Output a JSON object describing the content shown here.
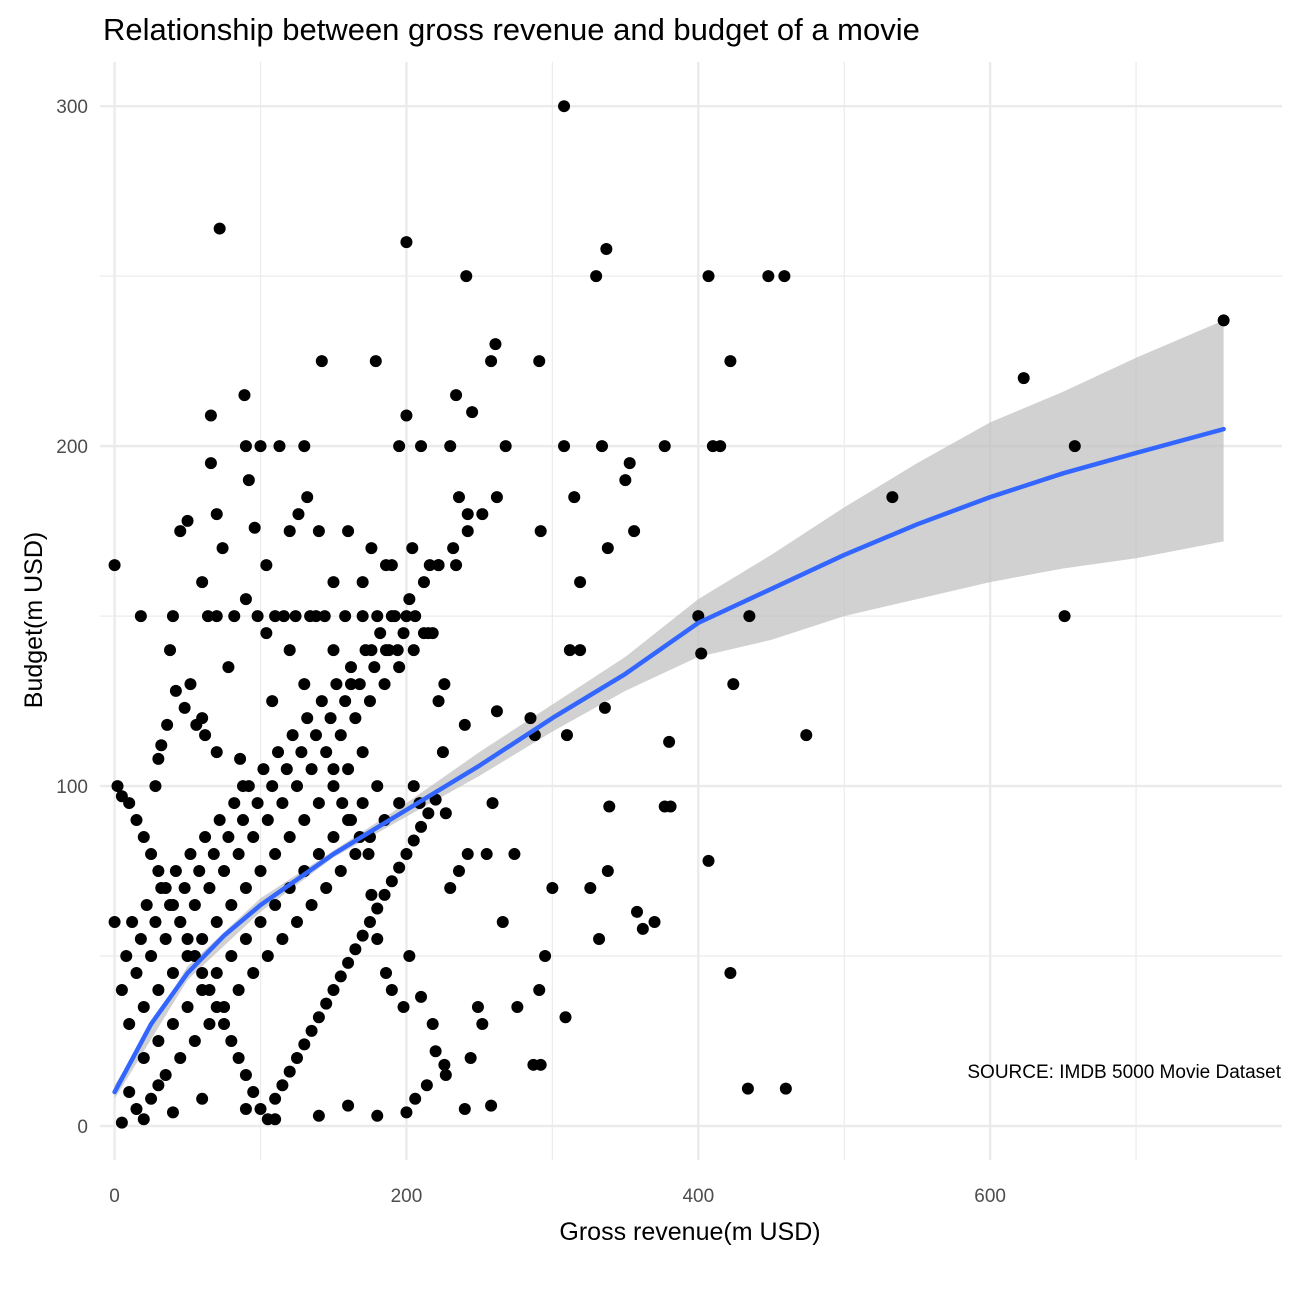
{
  "chart_data": {
    "type": "scatter",
    "title": "Relationship between gross revenue and budget of a movie",
    "xlabel": "Gross revenue(m USD)",
    "ylabel": "Budget(m USD)",
    "caption": "SOURCE: IMDB 5000 Movie Dataset",
    "xlim": [
      -10,
      800
    ],
    "ylim": [
      -10,
      313
    ],
    "x_ticks": [
      0,
      200,
      400,
      600
    ],
    "y_ticks": [
      0,
      100,
      200,
      300
    ],
    "grid": true,
    "colors": {
      "points": "#000000",
      "trend": "#3366FF",
      "band": "#BEBEBE",
      "grid": "#EBEBEB"
    },
    "points": [
      [
        308,
        300
      ],
      [
        72,
        264
      ],
      [
        200,
        260
      ],
      [
        337,
        258
      ],
      [
        241,
        250
      ],
      [
        330,
        250
      ],
      [
        407,
        250
      ],
      [
        448,
        250
      ],
      [
        459,
        250
      ],
      [
        760,
        237
      ],
      [
        261,
        230
      ],
      [
        142,
        225
      ],
      [
        179,
        225
      ],
      [
        258,
        225
      ],
      [
        291,
        225
      ],
      [
        422,
        225
      ],
      [
        623,
        220
      ],
      [
        234,
        215
      ],
      [
        89,
        215
      ],
      [
        245,
        210
      ],
      [
        66,
        209
      ],
      [
        200,
        209
      ],
      [
        658,
        200
      ],
      [
        533,
        185
      ],
      [
        400,
        150
      ],
      [
        435,
        150
      ],
      [
        651,
        150
      ],
      [
        402,
        139
      ],
      [
        424,
        130
      ],
      [
        474,
        115
      ],
      [
        380,
        113
      ],
      [
        326,
        70
      ],
      [
        407,
        78
      ],
      [
        338,
        75
      ],
      [
        422,
        45
      ],
      [
        434,
        11
      ],
      [
        460,
        11
      ],
      [
        0,
        165
      ],
      [
        292,
        175
      ],
      [
        308,
        200
      ],
      [
        334,
        200
      ],
      [
        377,
        200
      ],
      [
        410,
        200
      ],
      [
        415,
        200
      ],
      [
        268,
        200
      ],
      [
        230,
        200
      ],
      [
        210,
        200
      ],
      [
        195,
        200
      ],
      [
        113,
        200
      ],
      [
        130,
        200
      ],
      [
        100,
        200
      ],
      [
        90,
        200
      ],
      [
        315,
        185
      ],
      [
        350,
        190
      ],
      [
        353,
        195
      ],
      [
        356,
        175
      ],
      [
        319,
        160
      ],
      [
        338,
        170
      ],
      [
        312,
        140
      ],
      [
        319,
        140
      ],
      [
        336,
        123
      ],
      [
        339,
        94
      ],
      [
        377,
        94
      ],
      [
        381,
        94
      ],
      [
        370,
        60
      ],
      [
        358,
        63
      ],
      [
        362,
        58
      ],
      [
        332,
        55
      ],
      [
        300,
        70
      ],
      [
        295,
        50
      ],
      [
        291,
        40
      ],
      [
        287,
        18
      ],
      [
        292,
        18
      ],
      [
        309,
        32
      ],
      [
        276,
        35
      ],
      [
        266,
        60
      ],
      [
        249,
        35
      ],
      [
        252,
        30
      ],
      [
        244,
        20
      ],
      [
        240,
        5
      ],
      [
        227,
        15
      ],
      [
        230,
        70
      ],
      [
        242,
        80
      ],
      [
        255,
        80
      ],
      [
        274,
        80
      ],
      [
        259,
        95
      ],
      [
        225,
        110
      ],
      [
        240,
        118
      ],
      [
        262,
        122
      ],
      [
        285,
        120
      ],
      [
        288,
        115
      ],
      [
        310,
        115
      ],
      [
        258,
        6
      ],
      [
        236,
        75
      ],
      [
        227,
        92
      ],
      [
        209,
        95
      ],
      [
        200,
        4
      ],
      [
        180,
        3
      ],
      [
        160,
        6
      ],
      [
        140,
        3
      ],
      [
        110,
        2
      ],
      [
        90,
        5
      ],
      [
        60,
        8
      ],
      [
        40,
        4
      ],
      [
        20,
        2
      ],
      [
        5,
        1
      ],
      [
        10,
        10
      ],
      [
        15,
        5
      ],
      [
        25,
        8
      ],
      [
        30,
        12
      ],
      [
        35,
        15
      ],
      [
        45,
        20
      ],
      [
        55,
        25
      ],
      [
        65,
        30
      ],
      [
        75,
        35
      ],
      [
        85,
        40
      ],
      [
        95,
        45
      ],
      [
        105,
        50
      ],
      [
        115,
        55
      ],
      [
        125,
        60
      ],
      [
        135,
        65
      ],
      [
        145,
        70
      ],
      [
        155,
        75
      ],
      [
        165,
        80
      ],
      [
        175,
        85
      ],
      [
        185,
        90
      ],
      [
        195,
        95
      ],
      [
        205,
        100
      ],
      [
        20,
        20
      ],
      [
        30,
        25
      ],
      [
        40,
        30
      ],
      [
        50,
        35
      ],
      [
        60,
        40
      ],
      [
        70,
        45
      ],
      [
        80,
        50
      ],
      [
        90,
        55
      ],
      [
        100,
        60
      ],
      [
        110,
        65
      ],
      [
        120,
        70
      ],
      [
        130,
        75
      ],
      [
        140,
        80
      ],
      [
        150,
        85
      ],
      [
        160,
        90
      ],
      [
        170,
        95
      ],
      [
        180,
        100
      ],
      [
        10,
        30
      ],
      [
        20,
        35
      ],
      [
        30,
        40
      ],
      [
        40,
        45
      ],
      [
        50,
        50
      ],
      [
        60,
        55
      ],
      [
        70,
        60
      ],
      [
        80,
        65
      ],
      [
        90,
        70
      ],
      [
        100,
        75
      ],
      [
        110,
        80
      ],
      [
        120,
        85
      ],
      [
        130,
        90
      ],
      [
        140,
        95
      ],
      [
        150,
        100
      ],
      [
        160,
        105
      ],
      [
        170,
        110
      ],
      [
        5,
        40
      ],
      [
        15,
        45
      ],
      [
        25,
        50
      ],
      [
        35,
        55
      ],
      [
        45,
        60
      ],
      [
        55,
        65
      ],
      [
        65,
        70
      ],
      [
        75,
        75
      ],
      [
        85,
        80
      ],
      [
        95,
        85
      ],
      [
        105,
        90
      ],
      [
        115,
        95
      ],
      [
        125,
        100
      ],
      [
        135,
        105
      ],
      [
        145,
        110
      ],
      [
        155,
        115
      ],
      [
        165,
        120
      ],
      [
        175,
        125
      ],
      [
        185,
        130
      ],
      [
        195,
        135
      ],
      [
        205,
        140
      ],
      [
        215,
        145
      ],
      [
        8,
        50
      ],
      [
        18,
        55
      ],
      [
        28,
        60
      ],
      [
        38,
        65
      ],
      [
        48,
        70
      ],
      [
        58,
        75
      ],
      [
        68,
        80
      ],
      [
        78,
        85
      ],
      [
        88,
        90
      ],
      [
        98,
        95
      ],
      [
        108,
        100
      ],
      [
        118,
        105
      ],
      [
        128,
        110
      ],
      [
        138,
        115
      ],
      [
        148,
        120
      ],
      [
        158,
        125
      ],
      [
        168,
        130
      ],
      [
        178,
        135
      ],
      [
        188,
        140
      ],
      [
        198,
        145
      ],
      [
        12,
        60
      ],
      [
        22,
        65
      ],
      [
        32,
        70
      ],
      [
        42,
        75
      ],
      [
        52,
        80
      ],
      [
        62,
        85
      ],
      [
        72,
        90
      ],
      [
        82,
        95
      ],
      [
        92,
        100
      ],
      [
        102,
        105
      ],
      [
        112,
        110
      ],
      [
        122,
        115
      ],
      [
        132,
        120
      ],
      [
        142,
        125
      ],
      [
        152,
        130
      ],
      [
        162,
        135
      ],
      [
        172,
        140
      ],
      [
        182,
        145
      ],
      [
        192,
        150
      ],
      [
        202,
        155
      ],
      [
        212,
        160
      ],
      [
        222,
        165
      ],
      [
        232,
        170
      ],
      [
        242,
        175
      ],
      [
        252,
        180
      ],
      [
        262,
        185
      ],
      [
        0,
        60
      ],
      [
        2,
        100
      ],
      [
        5,
        97
      ],
      [
        10,
        95
      ],
      [
        15,
        90
      ],
      [
        20,
        85
      ],
      [
        25,
        80
      ],
      [
        30,
        75
      ],
      [
        35,
        70
      ],
      [
        40,
        65
      ],
      [
        45,
        60
      ],
      [
        50,
        55
      ],
      [
        55,
        50
      ],
      [
        60,
        45
      ],
      [
        65,
        40
      ],
      [
        70,
        35
      ],
      [
        75,
        30
      ],
      [
        80,
        25
      ],
      [
        85,
        20
      ],
      [
        90,
        15
      ],
      [
        95,
        10
      ],
      [
        100,
        5
      ],
      [
        105,
        2
      ],
      [
        110,
        8
      ],
      [
        115,
        12
      ],
      [
        120,
        16
      ],
      [
        125,
        20
      ],
      [
        130,
        24
      ],
      [
        135,
        28
      ],
      [
        140,
        32
      ],
      [
        145,
        36
      ],
      [
        150,
        40
      ],
      [
        155,
        44
      ],
      [
        160,
        48
      ],
      [
        165,
        52
      ],
      [
        170,
        56
      ],
      [
        175,
        60
      ],
      [
        180,
        64
      ],
      [
        185,
        68
      ],
      [
        190,
        72
      ],
      [
        195,
        76
      ],
      [
        200,
        80
      ],
      [
        205,
        84
      ],
      [
        210,
        88
      ],
      [
        215,
        92
      ],
      [
        220,
        96
      ],
      [
        18,
        150
      ],
      [
        38,
        140
      ],
      [
        40,
        150
      ],
      [
        52,
        130
      ],
      [
        60,
        120
      ],
      [
        64,
        150
      ],
      [
        70,
        150
      ],
      [
        78,
        135
      ],
      [
        82,
        150
      ],
      [
        90,
        155
      ],
      [
        98,
        150
      ],
      [
        104,
        145
      ],
      [
        108,
        125
      ],
      [
        116,
        150
      ],
      [
        120,
        140
      ],
      [
        124,
        150
      ],
      [
        130,
        130
      ],
      [
        134,
        150
      ],
      [
        138,
        150
      ],
      [
        144,
        150
      ],
      [
        150,
        140
      ],
      [
        158,
        150
      ],
      [
        162,
        130
      ],
      [
        170,
        150
      ],
      [
        176,
        140
      ],
      [
        180,
        150
      ],
      [
        186,
        140
      ],
      [
        190,
        150
      ],
      [
        194,
        140
      ],
      [
        200,
        150
      ],
      [
        206,
        150
      ],
      [
        212,
        145
      ],
      [
        218,
        145
      ],
      [
        222,
        125
      ],
      [
        226,
        130
      ],
      [
        88,
        100
      ],
      [
        86,
        108
      ],
      [
        70,
        110
      ],
      [
        62,
        115
      ],
      [
        56,
        118
      ],
      [
        48,
        123
      ],
      [
        42,
        128
      ],
      [
        36,
        118
      ],
      [
        32,
        112
      ],
      [
        30,
        108
      ],
      [
        28,
        100
      ],
      [
        45,
        175
      ],
      [
        50,
        178
      ],
      [
        60,
        160
      ],
      [
        66,
        195
      ],
      [
        70,
        180
      ],
      [
        74,
        170
      ],
      [
        92,
        190
      ],
      [
        96,
        176
      ],
      [
        104,
        165
      ],
      [
        110,
        150
      ],
      [
        120,
        175
      ],
      [
        126,
        180
      ],
      [
        132,
        185
      ],
      [
        140,
        175
      ],
      [
        150,
        160
      ],
      [
        160,
        175
      ],
      [
        170,
        160
      ],
      [
        176,
        170
      ],
      [
        186,
        165
      ],
      [
        190,
        165
      ],
      [
        204,
        170
      ],
      [
        216,
        165
      ],
      [
        222,
        165
      ],
      [
        236,
        185
      ],
      [
        242,
        180
      ],
      [
        234,
        165
      ],
      [
        150,
        105
      ],
      [
        156,
        95
      ],
      [
        162,
        90
      ],
      [
        168,
        85
      ],
      [
        174,
        80
      ],
      [
        176,
        68
      ],
      [
        180,
        55
      ],
      [
        186,
        45
      ],
      [
        190,
        40
      ],
      [
        198,
        35
      ],
      [
        202,
        50
      ],
      [
        210,
        38
      ],
      [
        218,
        30
      ],
      [
        220,
        22
      ],
      [
        226,
        18
      ],
      [
        214,
        12
      ],
      [
        206,
        8
      ]
    ],
    "trend": [
      [
        0,
        10
      ],
      [
        25,
        30
      ],
      [
        50,
        45
      ],
      [
        75,
        56
      ],
      [
        100,
        65
      ],
      [
        150,
        80
      ],
      [
        200,
        93
      ],
      [
        250,
        106
      ],
      [
        300,
        120
      ],
      [
        350,
        133
      ],
      [
        400,
        148
      ],
      [
        450,
        158
      ],
      [
        500,
        168
      ],
      [
        550,
        177
      ],
      [
        600,
        185
      ],
      [
        650,
        192
      ],
      [
        700,
        198
      ],
      [
        760,
        205
      ]
    ],
    "band_upper": [
      [
        0,
        12
      ],
      [
        50,
        47
      ],
      [
        100,
        67
      ],
      [
        150,
        81
      ],
      [
        200,
        95
      ],
      [
        250,
        110
      ],
      [
        300,
        124
      ],
      [
        350,
        138
      ],
      [
        400,
        155
      ],
      [
        450,
        168
      ],
      [
        500,
        182
      ],
      [
        550,
        195
      ],
      [
        600,
        207
      ],
      [
        650,
        216
      ],
      [
        700,
        226
      ],
      [
        760,
        237
      ]
    ],
    "band_lower": [
      [
        760,
        172
      ],
      [
        700,
        167
      ],
      [
        650,
        164
      ],
      [
        600,
        160
      ],
      [
        550,
        155
      ],
      [
        500,
        150
      ],
      [
        450,
        143
      ],
      [
        400,
        138
      ],
      [
        350,
        128
      ],
      [
        300,
        116
      ],
      [
        250,
        103
      ],
      [
        200,
        91
      ],
      [
        150,
        79
      ],
      [
        100,
        63
      ],
      [
        50,
        43
      ],
      [
        0,
        8
      ]
    ]
  }
}
